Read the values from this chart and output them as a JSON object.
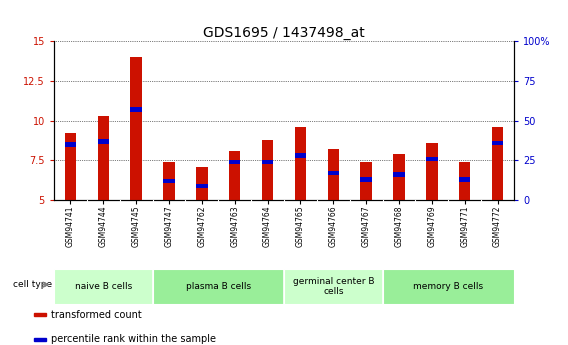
{
  "title": "GDS1695 / 1437498_at",
  "samples": [
    "GSM94741",
    "GSM94744",
    "GSM94745",
    "GSM94747",
    "GSM94762",
    "GSM94763",
    "GSM94764",
    "GSM94765",
    "GSM94766",
    "GSM94767",
    "GSM94768",
    "GSM94769",
    "GSM94771",
    "GSM94772"
  ],
  "transformed_count": [
    9.2,
    10.3,
    14.0,
    7.4,
    7.1,
    8.1,
    8.8,
    9.6,
    8.2,
    7.4,
    7.9,
    8.6,
    7.4,
    9.6
  ],
  "percentile_rank": [
    8.5,
    8.7,
    10.7,
    6.2,
    5.9,
    7.4,
    7.4,
    7.8,
    6.7,
    6.3,
    6.6,
    7.6,
    6.3,
    8.6
  ],
  "ylim": [
    5,
    15
  ],
  "yticks": [
    5,
    7.5,
    10,
    12.5,
    15
  ],
  "ytick_labels": [
    "5",
    "7.5",
    "10",
    "12.5",
    "15"
  ],
  "right_yticks": [
    0,
    25,
    50,
    75,
    100
  ],
  "right_ytick_labels": [
    "0",
    "25",
    "50",
    "75",
    "100%"
  ],
  "bar_color": "#cc1100",
  "percentile_color": "#0000cc",
  "bar_width": 0.35,
  "groups": [
    {
      "label": "naive B cells",
      "start": 0,
      "end": 3
    },
    {
      "label": "plasma B cells",
      "start": 3,
      "end": 7
    },
    {
      "label": "germinal center B\ncells",
      "start": 7,
      "end": 10
    },
    {
      "label": "memory B cells",
      "start": 10,
      "end": 14
    }
  ],
  "group_colors": [
    "#ccffcc",
    "#ccffcc",
    "#aaffaa",
    "#aaffaa"
  ],
  "cell_type_label": "cell type",
  "legend_items": [
    {
      "label": "transformed count",
      "color": "#cc1100"
    },
    {
      "label": "percentile rank within the sample",
      "color": "#0000cc"
    }
  ],
  "tick_label_color_left": "#cc1100",
  "tick_label_color_right": "#0000cc",
  "title_fontsize": 10,
  "tick_fontsize": 7,
  "sample_label_fontsize": 5.5
}
